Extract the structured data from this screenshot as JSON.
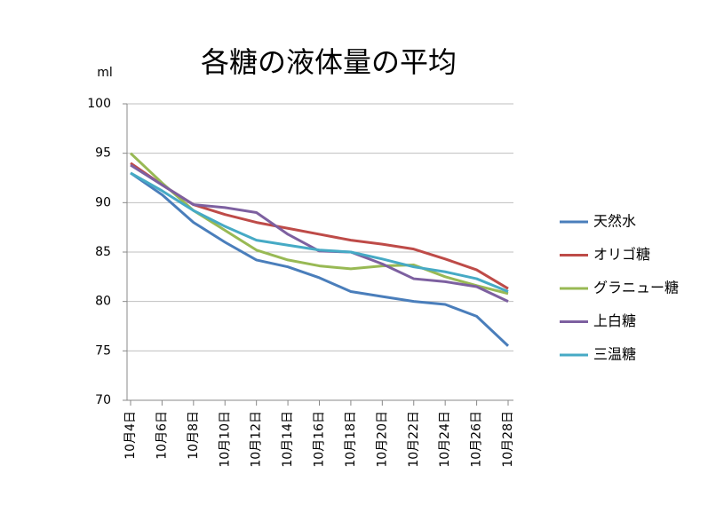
{
  "chart_data": {
    "type": "line",
    "title": "各糖の液体量の平均",
    "y_label": "ml",
    "categories": [
      "10月4日",
      "10月6日",
      "10月8日",
      "10月10日",
      "10月12日",
      "10月14日",
      "10月16日",
      "10月18日",
      "10月20日",
      "10月22日",
      "10月24日",
      "10月26日",
      "10月28日"
    ],
    "series": [
      {
        "name": "天然水",
        "color": "#4a7ebb",
        "values": [
          93,
          90.8,
          88,
          86,
          84.2,
          83.5,
          82.4,
          81,
          80.5,
          80,
          79.7,
          78.5,
          75.5
        ]
      },
      {
        "name": "オリゴ糖",
        "color": "#be4b48",
        "values": [
          94,
          91.8,
          89.8,
          88.8,
          88,
          87.4,
          86.8,
          86.2,
          85.8,
          85.3,
          84.3,
          83.2,
          81.3
        ]
      },
      {
        "name": "グラニュー糖",
        "color": "#98b954",
        "values": [
          95,
          92,
          89.2,
          87.2,
          85.2,
          84.2,
          83.6,
          83.3,
          83.6,
          83.7,
          82.5,
          81.6,
          80.8
        ]
      },
      {
        "name": "上白糖",
        "color": "#7d60a0",
        "values": [
          93.8,
          91.8,
          89.8,
          89.5,
          89,
          86.8,
          85.1,
          85,
          83.8,
          82.3,
          82,
          81.5,
          80
        ]
      },
      {
        "name": "三温糖",
        "color": "#46aac5",
        "values": [
          93,
          91.2,
          89.2,
          87.6,
          86.2,
          85.7,
          85.2,
          85,
          84.3,
          83.5,
          83,
          82.3,
          81
        ]
      }
    ],
    "ylim": [
      70,
      100
    ],
    "yticks": [
      70,
      75,
      80,
      85,
      90,
      95,
      100
    ],
    "grid": true,
    "legend": "right"
  }
}
